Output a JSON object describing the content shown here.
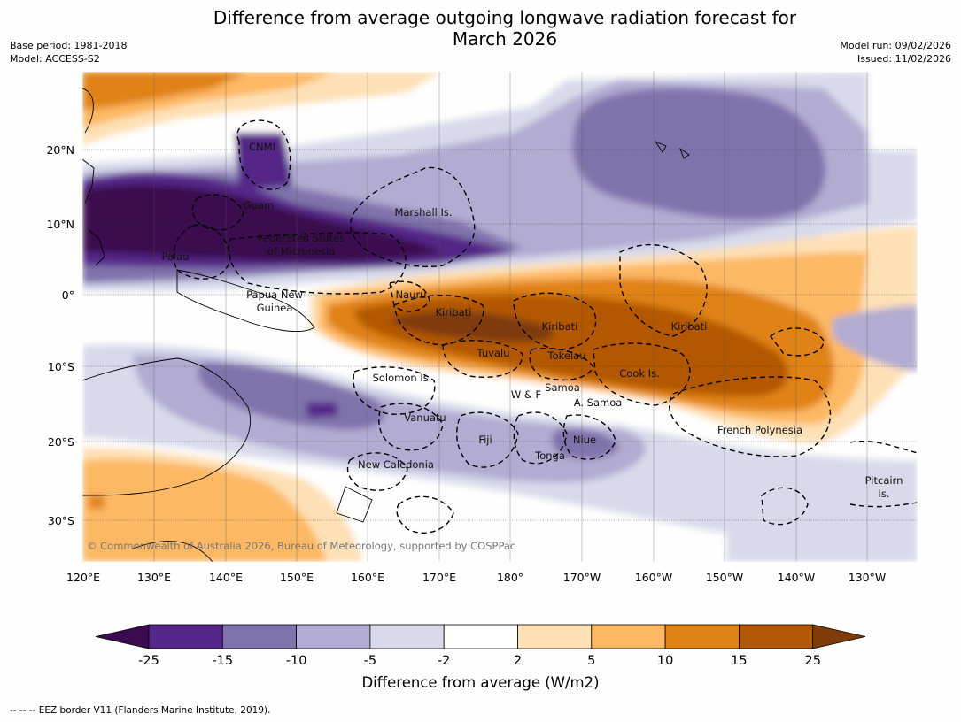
{
  "title": "Difference from average outgoing longwave radiation forecast for",
  "title_line2": "March 2026",
  "base_period": "Base period: 1981-2018",
  "model": "Model: ACCESS-S2",
  "model_run": "Model run: 09/02/2026",
  "issued": "Issued: 11/02/2026",
  "copyright": "© Commonwealth of Australia 2026, Bureau of Meteorology, supported by COSPPac",
  "eez_note": "--  --  -- EEZ border V11 (Flanders Marine Institute, 2019).",
  "axes": {
    "lon_ticks": [
      "120°E",
      "130°E",
      "140°E",
      "150°E",
      "160°E",
      "170°E",
      "180°",
      "170°W",
      "160°W",
      "150°W",
      "140°W",
      "130°W"
    ],
    "lat_ticks": [
      "20°N",
      "10°N",
      "0°",
      "10°S",
      "20°S",
      "30°S"
    ]
  },
  "colorbar": {
    "title": "Difference from average (W/m2)",
    "tick_labels": [
      "-25",
      "-15",
      "-10",
      "-5",
      "-2",
      "2",
      "5",
      "10",
      "15",
      "25"
    ],
    "colors": [
      "#3b0a4f",
      "#542788",
      "#8073ac",
      "#b2abd2",
      "#d8daeb",
      "#ffffff",
      "#fee0b6",
      "#fdb863",
      "#e08214",
      "#b35806",
      "#7f3b08"
    ]
  },
  "regions": [
    "CNMI",
    "Guam",
    "Marshall Is.",
    "Federated States",
    "of Micronesia",
    "Palau",
    "Papua New",
    "Guinea",
    "Nauru",
    "Kiribati",
    "Kiribati",
    "Kiribati",
    "Tuvalu",
    "Tokelau",
    "Solomon Is.",
    "Cook Is.",
    "Samoa",
    "W & F",
    "A. Samoa",
    "Vanuatu",
    "Fiji",
    "Niue",
    "Tonga",
    "French Polynesia",
    "New Caledonia",
    "Pitcairn",
    "Is."
  ]
}
